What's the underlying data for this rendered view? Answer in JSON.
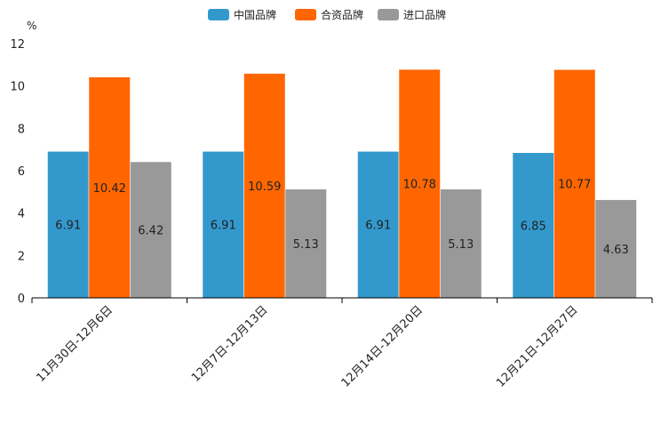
{
  "chart_data": {
    "type": "bar",
    "title": "",
    "xlabel": "",
    "ylabel": "",
    "unit_label": "%",
    "categories": [
      "11月30日-12月6日",
      "12月7日-12月13日",
      "12月14日-12月20日",
      "12月21日-12月27日"
    ],
    "series": [
      {
        "name": "中国品牌",
        "color": "#3399CC",
        "values": [
          6.91,
          6.91,
          6.91,
          6.85
        ],
        "labels": [
          "6.91",
          "6.91",
          "6.91",
          "6.85"
        ]
      },
      {
        "name": "合资品牌",
        "color": "#FF6600",
        "values": [
          10.42,
          10.59,
          10.78,
          10.77
        ],
        "labels": [
          "10.42",
          "10.59",
          "10.78",
          "10.77"
        ]
      },
      {
        "name": "进口品牌",
        "color": "#999999",
        "values": [
          6.42,
          5.13,
          5.13,
          4.63
        ],
        "labels": [
          "6.42",
          "5.13",
          "5.13",
          "4.63"
        ]
      }
    ],
    "yticks": [
      0,
      2,
      4,
      6,
      8,
      10,
      12
    ],
    "ytick_labels": [
      "0",
      "2",
      "4",
      "6",
      "8",
      "10",
      "12"
    ],
    "ylim": [
      0,
      12
    ],
    "grid": false,
    "legend_position": "top-center"
  }
}
